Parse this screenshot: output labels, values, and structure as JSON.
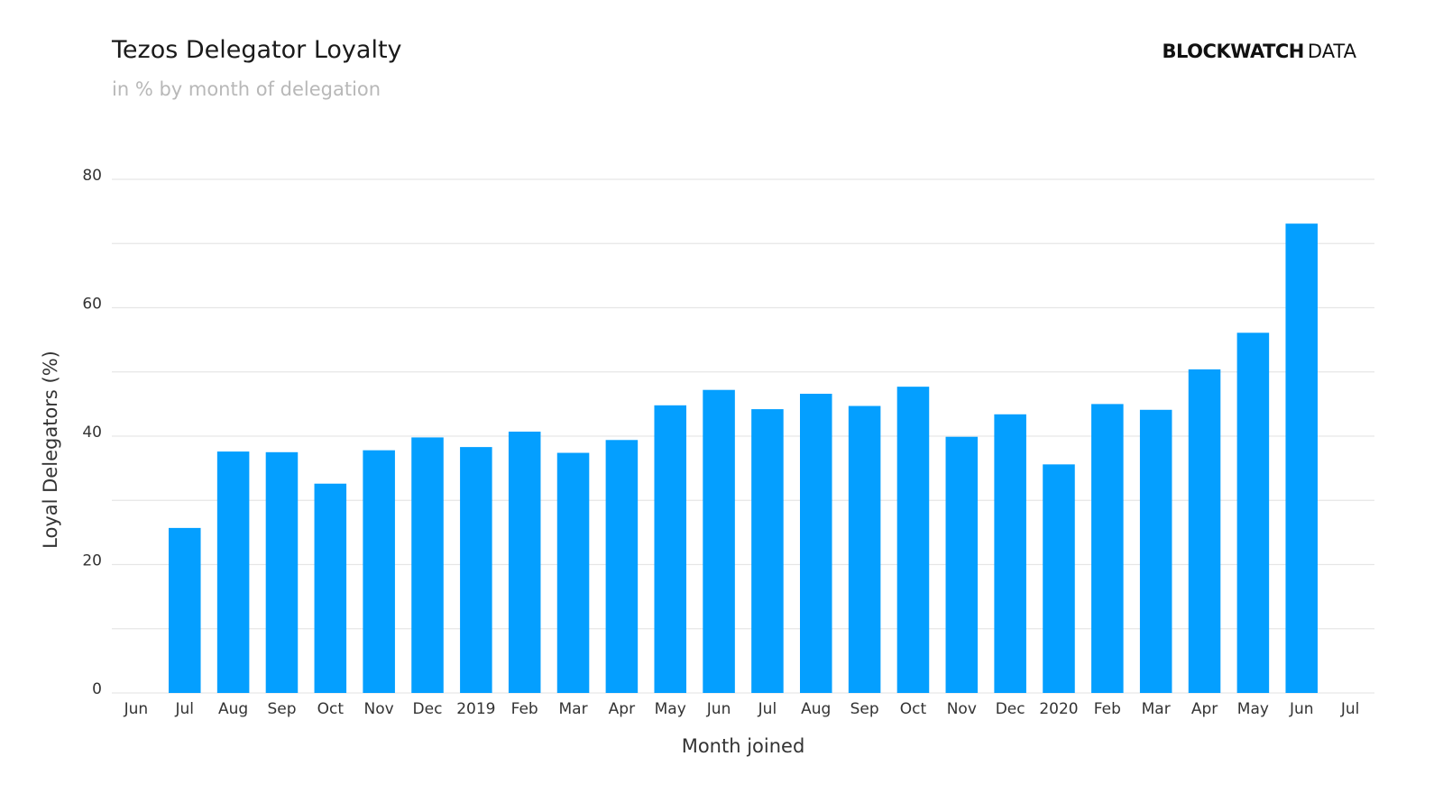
{
  "header": {
    "title": "Tezos Delegator Loyalty",
    "subtitle": "in % by month of delegation",
    "brand_strong": "BLOCKWATCH",
    "brand_light": "DATA"
  },
  "colors": {
    "bar": "#049FFF",
    "grid": "#e6e6e6",
    "tick_text": "#333333",
    "axis_title": "#333333"
  },
  "chart_data": {
    "type": "bar",
    "xlabel": "Month joined",
    "ylabel": "Loyal Delegators (%)",
    "ylim": [
      0,
      80
    ],
    "yticks": [
      0,
      20,
      40,
      60,
      80
    ],
    "grid": true,
    "categories": [
      "Jun",
      "Jul",
      "Aug",
      "Sep",
      "Oct",
      "Nov",
      "Dec",
      "2019",
      "Feb",
      "Mar",
      "Apr",
      "May",
      "Jun",
      "Jul",
      "Aug",
      "Sep",
      "Oct",
      "Nov",
      "Dec",
      "2020",
      "Feb",
      "Mar",
      "Apr",
      "May",
      "Jun",
      "Jul"
    ],
    "values": [
      null,
      25.7,
      37.6,
      37.5,
      32.6,
      37.8,
      39.8,
      38.3,
      40.7,
      37.4,
      39.4,
      44.8,
      47.2,
      44.2,
      46.6,
      44.7,
      47.7,
      39.9,
      43.4,
      35.6,
      45.0,
      44.1,
      50.4,
      56.1,
      73.1,
      null
    ]
  }
}
